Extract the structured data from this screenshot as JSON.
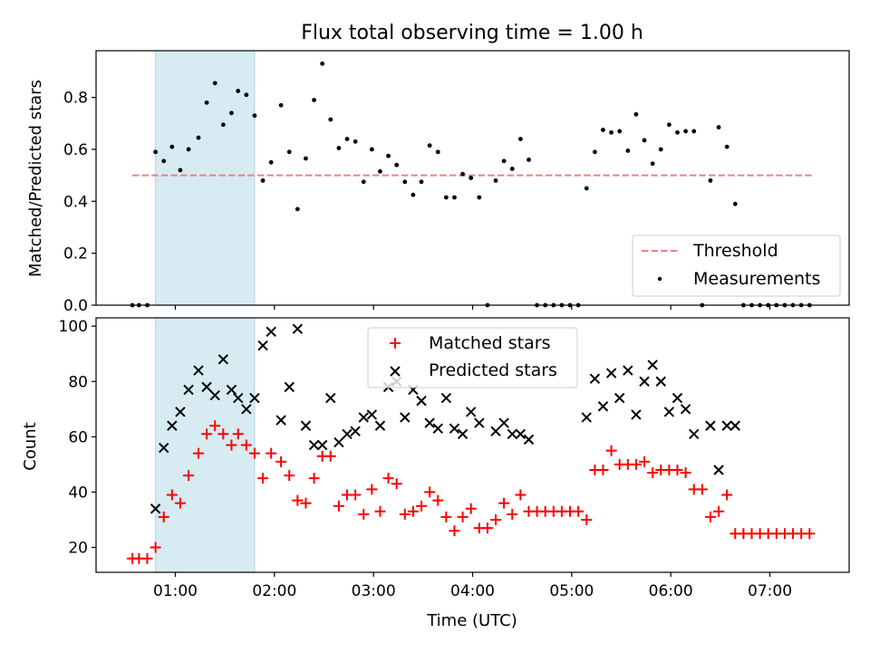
{
  "colors": {
    "threshold": "#f08080",
    "measurements": "#000000",
    "matched": "#ff0000",
    "predicted": "#000000",
    "highlight": "#add8e6"
  },
  "chart_data": [
    {
      "type": "scatter",
      "title": "Flux total observing time = 1.00 h",
      "xlabel": "",
      "ylabel": "Matched/Predicted stars",
      "xlim": [
        "00:12",
        "07:48"
      ],
      "ylim": [
        0,
        0.98
      ],
      "yticks": [
        "0.0",
        "0.2",
        "0.4",
        "0.6",
        "0.8"
      ],
      "highlight_span": [
        "00:48",
        "01:48"
      ],
      "legend": {
        "position": "lower-right",
        "entries": [
          "Threshold",
          "Measurements"
        ]
      },
      "threshold": {
        "name": "Threshold",
        "value": 0.5,
        "x_range": [
          "00:34",
          "07:26"
        ],
        "style": "dashed"
      },
      "series": [
        {
          "name": "Measurements",
          "points": [
            [
              "00:34",
              0
            ],
            [
              "00:38",
              0
            ],
            [
              "00:43",
              0
            ],
            [
              "00:48",
              0.59
            ],
            [
              "00:53",
              0.555
            ],
            [
              "00:58",
              0.61
            ],
            [
              "01:03",
              0.52
            ],
            [
              "01:08",
              0.6
            ],
            [
              "01:14",
              0.645
            ],
            [
              "01:19",
              0.78
            ],
            [
              "01:24",
              0.855
            ],
            [
              "01:29",
              0.695
            ],
            [
              "01:34",
              0.74
            ],
            [
              "01:38",
              0.825
            ],
            [
              "01:43",
              0.81
            ],
            [
              "01:48",
              0.73
            ],
            [
              "01:53",
              0.48
            ],
            [
              "01:58",
              0.55
            ],
            [
              "02:04",
              0.77
            ],
            [
              "02:09",
              0.59
            ],
            [
              "02:14",
              0.37
            ],
            [
              "02:19",
              0.565
            ],
            [
              "02:24",
              0.79
            ],
            [
              "02:29",
              0.93
            ],
            [
              "02:34",
              0.715
            ],
            [
              "02:39",
              0.605
            ],
            [
              "02:44",
              0.64
            ],
            [
              "02:49",
              0.63
            ],
            [
              "02:54",
              0.475
            ],
            [
              "02:59",
              0.6
            ],
            [
              "03:04",
              0.515
            ],
            [
              "03:09",
              0.575
            ],
            [
              "03:14",
              0.54
            ],
            [
              "03:19",
              0.475
            ],
            [
              "03:24",
              0.425
            ],
            [
              "03:29",
              0.475
            ],
            [
              "03:34",
              0.615
            ],
            [
              "03:39",
              0.59
            ],
            [
              "03:44",
              0.415
            ],
            [
              "03:49",
              0.415
            ],
            [
              "03:54",
              0.505
            ],
            [
              "03:59",
              0.49
            ],
            [
              "04:04",
              0.415
            ],
            [
              "04:09",
              0
            ],
            [
              "04:14",
              0.48
            ],
            [
              "04:19",
              0.555
            ],
            [
              "04:24",
              0.525
            ],
            [
              "04:29",
              0.64
            ],
            [
              "04:34",
              0.56
            ],
            [
              "04:39",
              0
            ],
            [
              "04:44",
              0
            ],
            [
              "04:49",
              0
            ],
            [
              "04:54",
              0
            ],
            [
              "04:59",
              0
            ],
            [
              "05:04",
              0
            ],
            [
              "05:09",
              0.45
            ],
            [
              "05:14",
              0.59
            ],
            [
              "05:19",
              0.675
            ],
            [
              "05:24",
              0.665
            ],
            [
              "05:29",
              0.67
            ],
            [
              "05:34",
              0.595
            ],
            [
              "05:39",
              0.735
            ],
            [
              "05:44",
              0.635
            ],
            [
              "05:49",
              0.545
            ],
            [
              "05:54",
              0.6
            ],
            [
              "05:59",
              0.695
            ],
            [
              "06:04",
              0.665
            ],
            [
              "06:09",
              0.67
            ],
            [
              "06:14",
              0.67
            ],
            [
              "06:19",
              0
            ],
            [
              "06:24",
              0.48
            ],
            [
              "06:29",
              0.685
            ],
            [
              "06:34",
              0.61
            ],
            [
              "06:39",
              0.39
            ],
            [
              "06:44",
              0
            ],
            [
              "06:49",
              0
            ],
            [
              "06:54",
              0
            ],
            [
              "06:59",
              0
            ],
            [
              "07:04",
              0
            ],
            [
              "07:09",
              0
            ],
            [
              "07:14",
              0
            ],
            [
              "07:19",
              0
            ],
            [
              "07:24",
              0
            ]
          ]
        }
      ]
    },
    {
      "type": "scatter",
      "title": "",
      "xlabel": "Time (UTC)",
      "ylabel": "Count",
      "xlim": [
        "00:12",
        "07:48"
      ],
      "ylim": [
        11,
        103
      ],
      "xticks": [
        "01:00",
        "02:00",
        "03:00",
        "04:00",
        "05:00",
        "06:00",
        "07:00"
      ],
      "yticks": [
        "20",
        "40",
        "60",
        "80",
        "100"
      ],
      "highlight_span": [
        "00:48",
        "01:48"
      ],
      "legend": {
        "position": "top-center",
        "entries": [
          "Matched stars",
          "Predicted stars"
        ]
      },
      "series": [
        {
          "name": "Matched stars",
          "marker": "plus",
          "points": [
            [
              "00:34",
              16
            ],
            [
              "00:38",
              16
            ],
            [
              "00:43",
              16
            ],
            [
              "00:48",
              20
            ],
            [
              "00:53",
              31
            ],
            [
              "00:58",
              39
            ],
            [
              "01:03",
              36
            ],
            [
              "01:08",
              46
            ],
            [
              "01:14",
              54
            ],
            [
              "01:19",
              61
            ],
            [
              "01:24",
              64
            ],
            [
              "01:29",
              61
            ],
            [
              "01:34",
              57
            ],
            [
              "01:38",
              61
            ],
            [
              "01:43",
              57
            ],
            [
              "01:48",
              54
            ],
            [
              "01:53",
              45
            ],
            [
              "01:58",
              54
            ],
            [
              "02:04",
              51
            ],
            [
              "02:09",
              46
            ],
            [
              "02:14",
              37
            ],
            [
              "02:19",
              36
            ],
            [
              "02:24",
              45
            ],
            [
              "02:29",
              53
            ],
            [
              "02:34",
              53
            ],
            [
              "02:39",
              35
            ],
            [
              "02:44",
              39
            ],
            [
              "02:49",
              39
            ],
            [
              "02:54",
              32
            ],
            [
              "02:59",
              41
            ],
            [
              "03:04",
              33
            ],
            [
              "03:09",
              45
            ],
            [
              "03:14",
              43
            ],
            [
              "03:19",
              32
            ],
            [
              "03:24",
              33
            ],
            [
              "03:29",
              35
            ],
            [
              "03:34",
              40
            ],
            [
              "03:39",
              37
            ],
            [
              "03:44",
              31
            ],
            [
              "03:49",
              26
            ],
            [
              "03:54",
              31
            ],
            [
              "03:59",
              34
            ],
            [
              "04:04",
              27
            ],
            [
              "04:09",
              27
            ],
            [
              "04:14",
              30
            ],
            [
              "04:19",
              36
            ],
            [
              "04:24",
              32
            ],
            [
              "04:29",
              39
            ],
            [
              "04:34",
              33
            ],
            [
              "04:39",
              33
            ],
            [
              "04:44",
              33
            ],
            [
              "04:49",
              33
            ],
            [
              "04:54",
              33
            ],
            [
              "04:59",
              33
            ],
            [
              "05:04",
              33
            ],
            [
              "05:09",
              30
            ],
            [
              "05:14",
              48
            ],
            [
              "05:19",
              48
            ],
            [
              "05:24",
              55
            ],
            [
              "05:29",
              50
            ],
            [
              "05:34",
              50
            ],
            [
              "05:39",
              50
            ],
            [
              "05:44",
              51
            ],
            [
              "05:49",
              47
            ],
            [
              "05:54",
              48
            ],
            [
              "05:59",
              48
            ],
            [
              "06:04",
              48
            ],
            [
              "06:09",
              47
            ],
            [
              "06:14",
              41
            ],
            [
              "06:19",
              41
            ],
            [
              "06:24",
              31
            ],
            [
              "06:29",
              33
            ],
            [
              "06:34",
              39
            ],
            [
              "06:39",
              25
            ],
            [
              "06:44",
              25
            ],
            [
              "06:49",
              25
            ],
            [
              "06:54",
              25
            ],
            [
              "06:59",
              25
            ],
            [
              "07:04",
              25
            ],
            [
              "07:09",
              25
            ],
            [
              "07:14",
              25
            ],
            [
              "07:19",
              25
            ],
            [
              "07:24",
              25
            ]
          ]
        },
        {
          "name": "Predicted stars",
          "marker": "x",
          "points": [
            [
              "00:48",
              34
            ],
            [
              "00:53",
              56
            ],
            [
              "00:58",
              64
            ],
            [
              "01:03",
              69
            ],
            [
              "01:08",
              77
            ],
            [
              "01:14",
              84
            ],
            [
              "01:19",
              78
            ],
            [
              "01:24",
              75
            ],
            [
              "01:29",
              88
            ],
            [
              "01:34",
              77
            ],
            [
              "01:38",
              74
            ],
            [
              "01:43",
              70
            ],
            [
              "01:48",
              74
            ],
            [
              "01:53",
              93
            ],
            [
              "01:58",
              98
            ],
            [
              "02:04",
              66
            ],
            [
              "02:09",
              78
            ],
            [
              "02:14",
              99
            ],
            [
              "02:19",
              64
            ],
            [
              "02:24",
              57
            ],
            [
              "02:29",
              57
            ],
            [
              "02:34",
              74
            ],
            [
              "02:39",
              58
            ],
            [
              "02:44",
              61
            ],
            [
              "02:49",
              62
            ],
            [
              "02:54",
              67
            ],
            [
              "02:59",
              68
            ],
            [
              "03:04",
              64
            ],
            [
              "03:09",
              78
            ],
            [
              "03:14",
              80
            ],
            [
              "03:19",
              67
            ],
            [
              "03:24",
              77
            ],
            [
              "03:29",
              73
            ],
            [
              "03:34",
              65
            ],
            [
              "03:39",
              63
            ],
            [
              "03:44",
              74
            ],
            [
              "03:49",
              63
            ],
            [
              "03:54",
              61
            ],
            [
              "03:59",
              69
            ],
            [
              "04:04",
              65
            ],
            [
              "04:14",
              62
            ],
            [
              "04:19",
              65
            ],
            [
              "04:24",
              61
            ],
            [
              "04:29",
              61
            ],
            [
              "04:34",
              59
            ],
            [
              "05:09",
              67
            ],
            [
              "05:14",
              81
            ],
            [
              "05:19",
              71
            ],
            [
              "05:24",
              83
            ],
            [
              "05:29",
              74
            ],
            [
              "05:34",
              84
            ],
            [
              "05:39",
              68
            ],
            [
              "05:44",
              80
            ],
            [
              "05:49",
              86
            ],
            [
              "05:54",
              80
            ],
            [
              "05:59",
              69
            ],
            [
              "06:04",
              74
            ],
            [
              "06:09",
              70
            ],
            [
              "06:14",
              61
            ],
            [
              "06:24",
              64
            ],
            [
              "06:29",
              48
            ],
            [
              "06:34",
              64
            ],
            [
              "06:39",
              64
            ]
          ]
        }
      ]
    }
  ]
}
